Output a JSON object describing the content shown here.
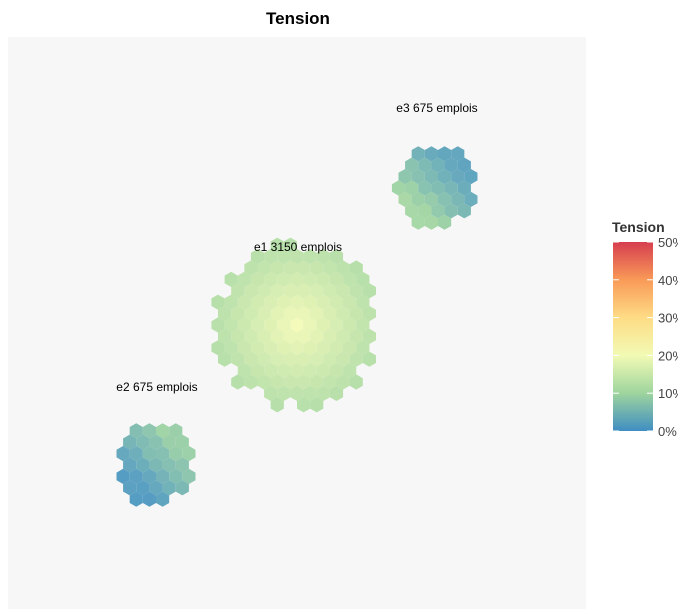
{
  "chart_data": {
    "type": "heatmap",
    "subtype": "hexbin-clusters",
    "title": "Tension",
    "background": "#f7f7f7",
    "colorscale": {
      "name": "Tension",
      "min": 0,
      "max": 50,
      "unit": "%",
      "ticks": [
        "0%",
        "10%",
        "20%",
        "30%",
        "40%",
        "50%"
      ],
      "stops": [
        {
          "value": 0,
          "color": "#3f8ec2"
        },
        {
          "value": 10,
          "color": "#9ed49e"
        },
        {
          "value": 20,
          "color": "#f2fab4"
        },
        {
          "value": 30,
          "color": "#fedc85"
        },
        {
          "value": 40,
          "color": "#f99a58"
        },
        {
          "value": 50,
          "color": "#d63e4f"
        }
      ]
    },
    "clusters": [
      {
        "id": "e1",
        "label": "e1 3150 emplois",
        "tension_center": 20,
        "tension_edge": 12
      },
      {
        "id": "e2",
        "label": "e2 675 emplois",
        "tension_center": 7,
        "tension_edge": 3
      },
      {
        "id": "e3",
        "label": "e3 675 emplois",
        "tension_center": 8,
        "tension_edge": 4
      }
    ]
  }
}
